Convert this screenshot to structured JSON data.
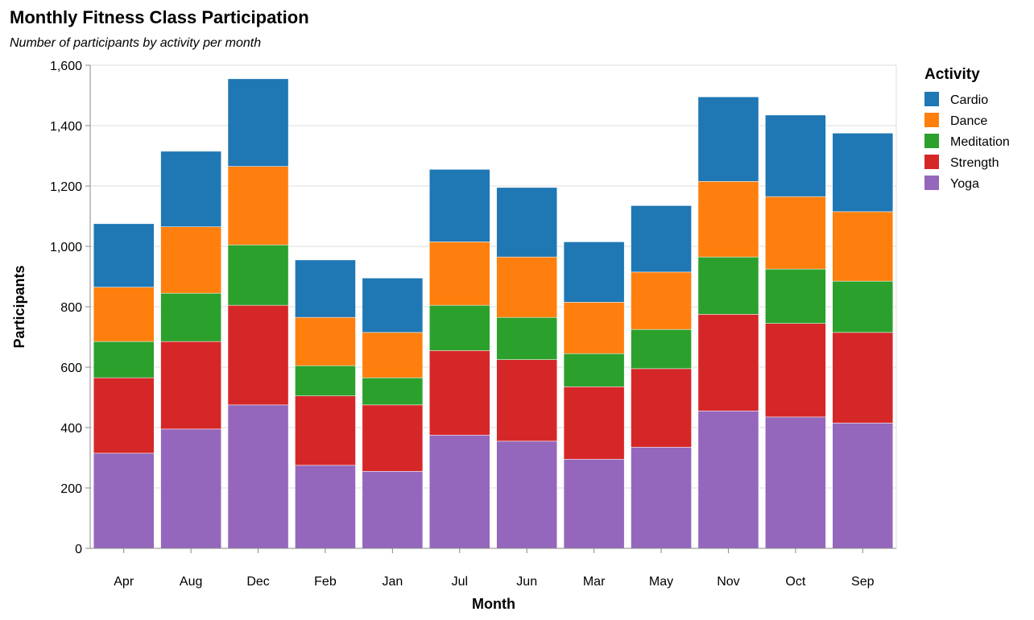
{
  "chart_data": {
    "type": "bar",
    "stacked": true,
    "title": "Monthly Fitness Class Participation",
    "subtitle": "Number of participants by activity per month",
    "xlabel": "Month",
    "ylabel": "Participants",
    "ylim": [
      0,
      1600
    ],
    "yticks": [
      0,
      200,
      400,
      600,
      800,
      1000,
      1200,
      1400,
      1600
    ],
    "ytick_labels": [
      "0",
      "200",
      "400",
      "600",
      "800",
      "1,000",
      "1,200",
      "1,400",
      "1,600"
    ],
    "grid": true,
    "legend_title": "Activity",
    "legend_position": "right",
    "categories": [
      "Apr",
      "Aug",
      "Dec",
      "Feb",
      "Jan",
      "Jul",
      "Jun",
      "Mar",
      "May",
      "Nov",
      "Oct",
      "Sep"
    ],
    "series": [
      {
        "name": "Yoga",
        "color": "#9467bd",
        "values": [
          315,
          395,
          475,
          275,
          255,
          375,
          355,
          295,
          335,
          455,
          435,
          415
        ]
      },
      {
        "name": "Strength",
        "color": "#d62728",
        "values": [
          250,
          290,
          330,
          230,
          220,
          280,
          270,
          240,
          260,
          320,
          310,
          300
        ]
      },
      {
        "name": "Meditation",
        "color": "#2ca02c",
        "values": [
          120,
          160,
          200,
          100,
          90,
          150,
          140,
          110,
          130,
          190,
          180,
          170
        ]
      },
      {
        "name": "Dance",
        "color": "#ff7f0e",
        "values": [
          180,
          220,
          260,
          160,
          150,
          210,
          200,
          170,
          190,
          250,
          240,
          230
        ]
      },
      {
        "name": "Cardio",
        "color": "#1f77b4",
        "values": [
          210,
          250,
          290,
          190,
          180,
          240,
          230,
          200,
          220,
          280,
          270,
          260
        ]
      }
    ],
    "legend_order": [
      "Cardio",
      "Dance",
      "Meditation",
      "Strength",
      "Yoga"
    ]
  }
}
